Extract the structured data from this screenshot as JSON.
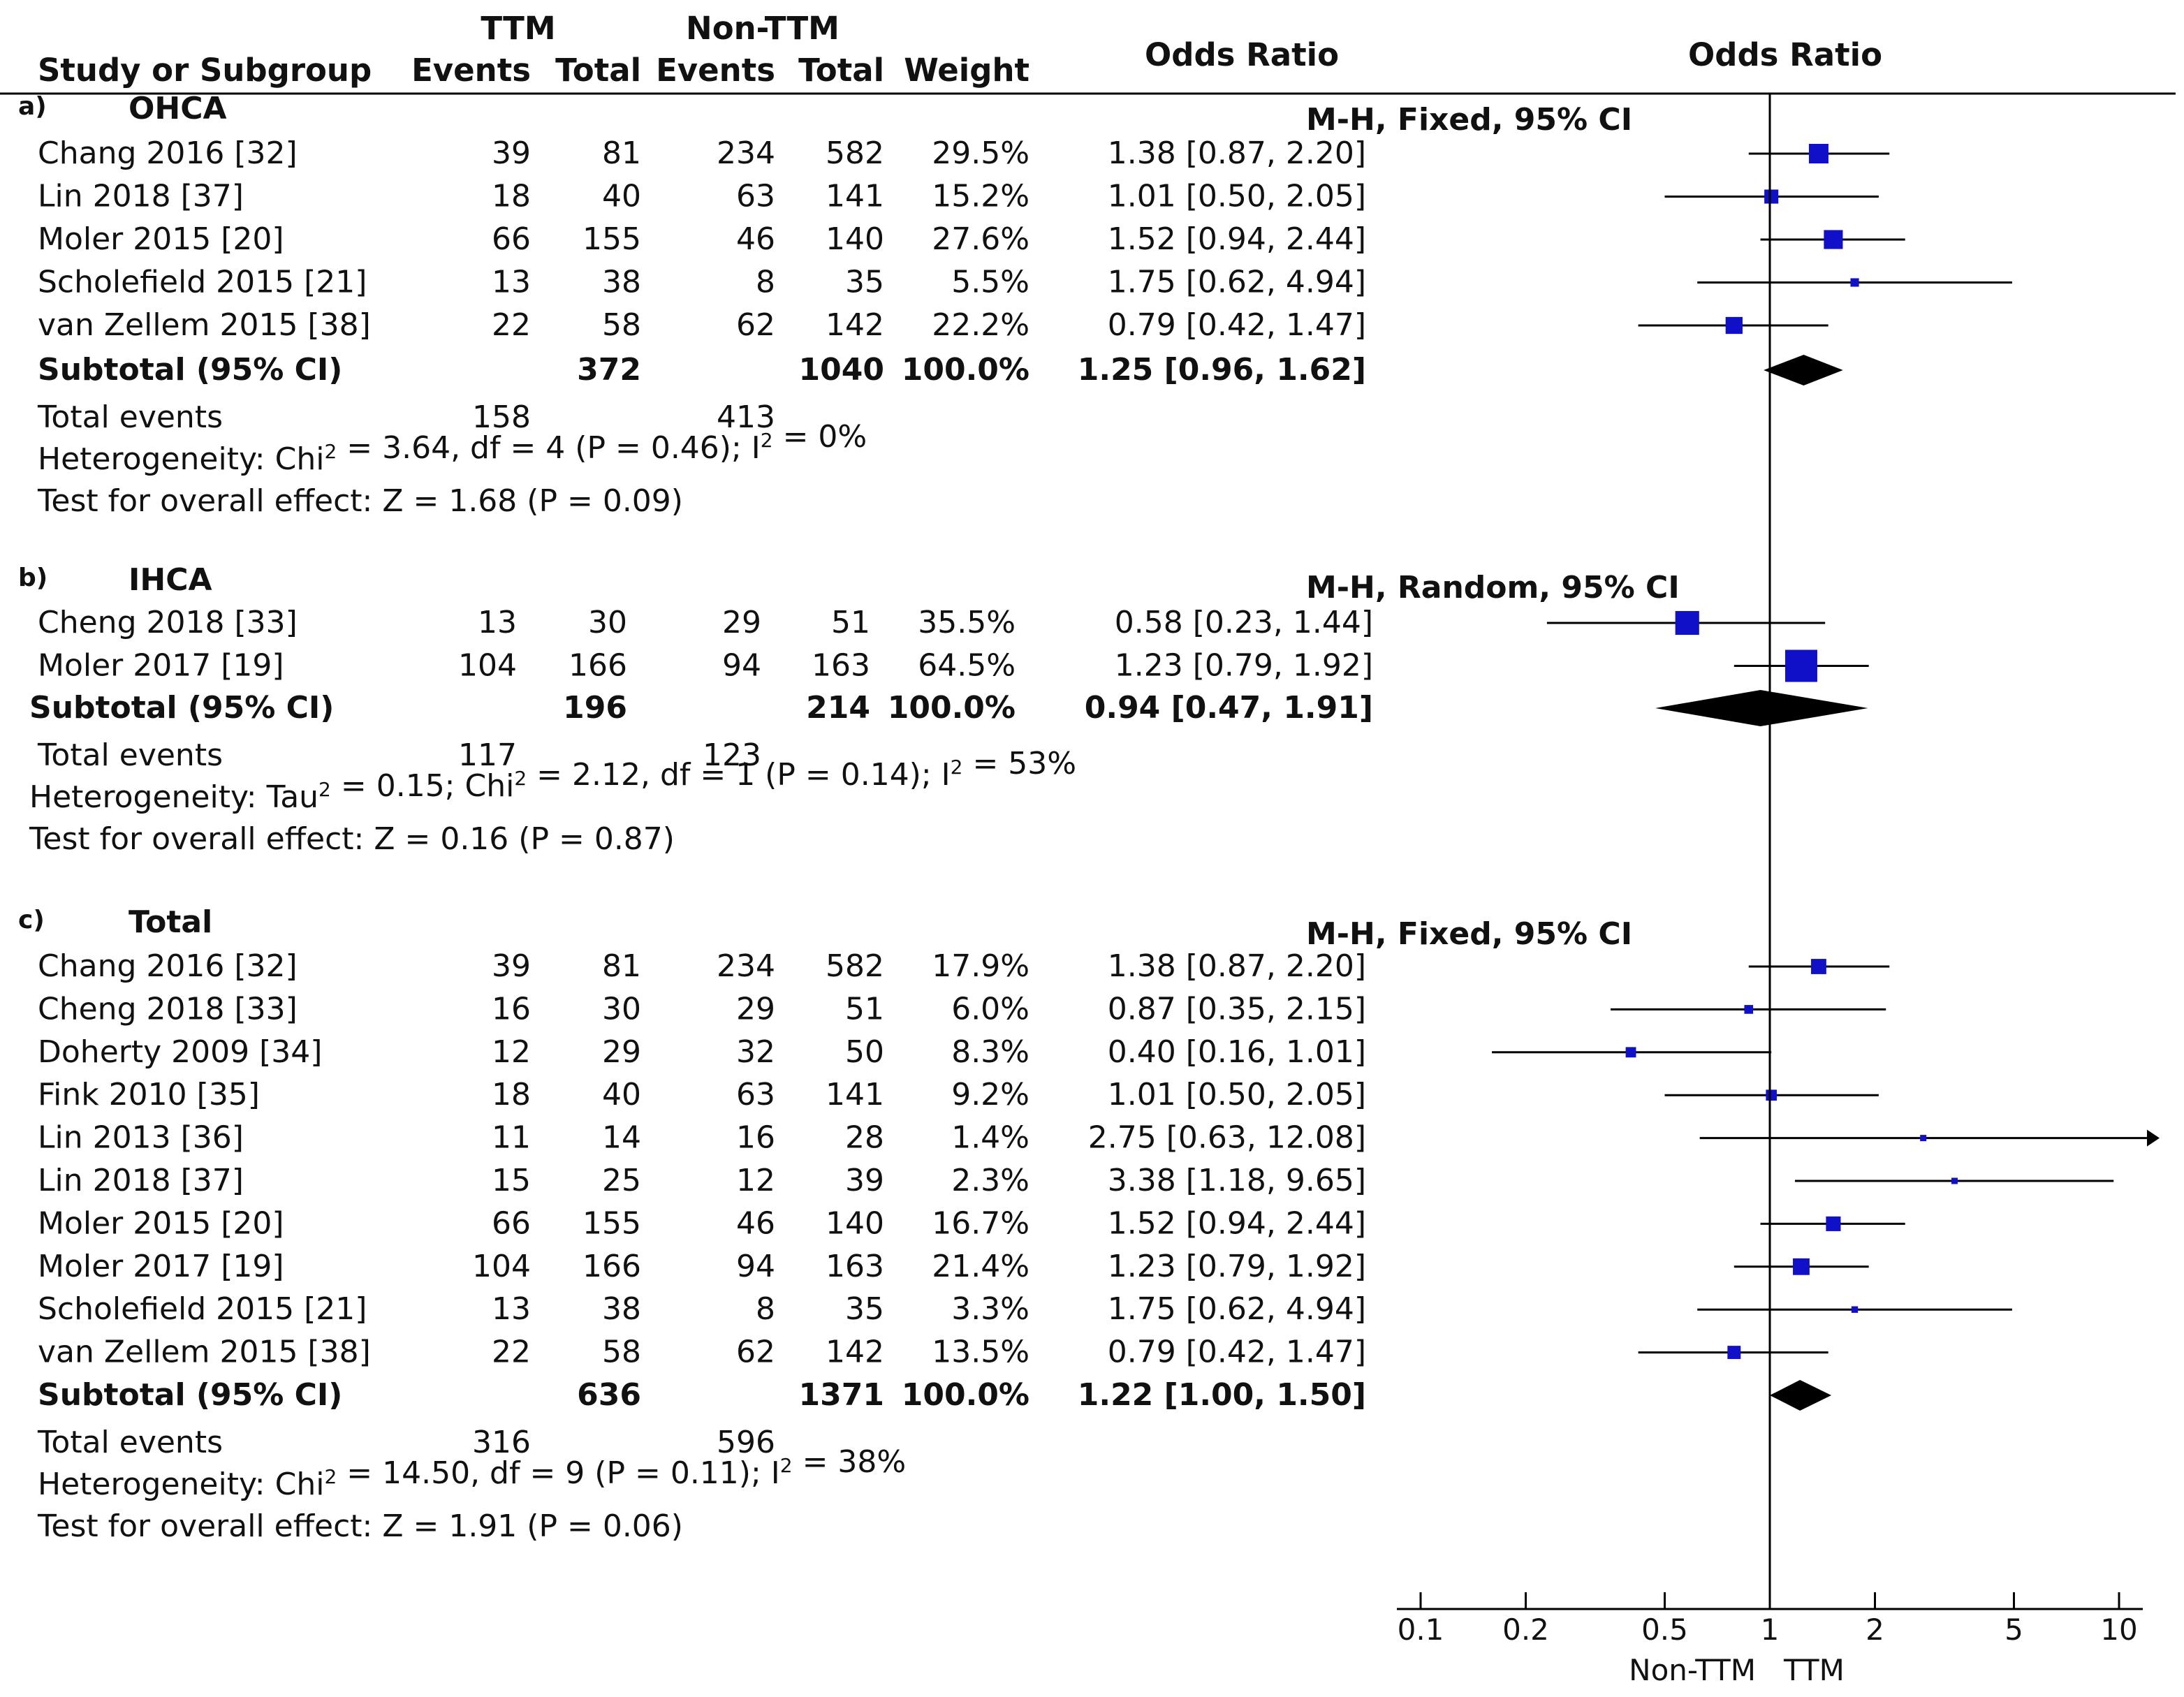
{
  "chart_data": {
    "type": "forest",
    "scale": "log",
    "xlim": [
      0.1,
      10
    ],
    "header": {
      "study": "Study or Subgroup",
      "group1": "TTM",
      "group2": "Non-TTM",
      "events": "Events",
      "total": "Total",
      "weight": "Weight",
      "or_text": "Odds Ratio",
      "or_plot": "Odds Ratio"
    },
    "axis": {
      "ticks": [
        0.1,
        0.2,
        0.5,
        1,
        2,
        5,
        10
      ],
      "tick_labels": [
        "0.1",
        "0.2",
        "0.5",
        "1",
        "2",
        "5",
        "10"
      ],
      "left_label": "Non-TTM",
      "right_label": "TTM",
      "null_value": 1
    },
    "sections": [
      {
        "letter": "a)",
        "title": "OHCA",
        "method": "M-H, Fixed, 95% CI",
        "studies": [
          {
            "name": "Chang 2016 [32]",
            "e1": "39",
            "n1": "81",
            "e2": "234",
            "n2": "582",
            "weight": "29.5%",
            "ci_text": "1.38 [0.87, 2.20]",
            "or": 1.38,
            "lo": 0.87,
            "hi": 2.2,
            "w": 29.5
          },
          {
            "name": "Lin 2018 [37]",
            "e1": "18",
            "n1": "40",
            "e2": "63",
            "n2": "141",
            "weight": "15.2%",
            "ci_text": "1.01 [0.50, 2.05]",
            "or": 1.01,
            "lo": 0.5,
            "hi": 2.05,
            "w": 15.2
          },
          {
            "name": "Moler 2015 [20]",
            "e1": "66",
            "n1": "155",
            "e2": "46",
            "n2": "140",
            "weight": "27.6%",
            "ci_text": "1.52 [0.94, 2.44]",
            "or": 1.52,
            "lo": 0.94,
            "hi": 2.44,
            "w": 27.6
          },
          {
            "name": "Scholefield 2015 [21]",
            "e1": "13",
            "n1": "38",
            "e2": "8",
            "n2": "35",
            "weight": "5.5%",
            "ci_text": "1.75 [0.62, 4.94]",
            "or": 1.75,
            "lo": 0.62,
            "hi": 4.94,
            "w": 5.5
          },
          {
            "name": "van Zellem 2015 [38]",
            "e1": "22",
            "n1": "58",
            "e2": "62",
            "n2": "142",
            "weight": "22.2%",
            "ci_text": "0.79 [0.42, 1.47]",
            "or": 0.79,
            "lo": 0.42,
            "hi": 1.47,
            "w": 22.2
          }
        ],
        "subtotal": {
          "label": "Subtotal (95% CI)",
          "n1": "372",
          "n2": "1040",
          "weight": "100.0%",
          "ci_text": "1.25 [0.96, 1.62]",
          "or": 1.25,
          "lo": 0.96,
          "hi": 1.62
        },
        "total_events": {
          "label": "Total events",
          "e1": "158",
          "e2": "413"
        },
        "heterogeneity": "Heterogeneity: Chi² = 3.64, df = 4 (P = 0.46); I² = 0%",
        "overall": "Test for overall effect: Z = 1.68 (P = 0.09)"
      },
      {
        "letter": "b)",
        "title": "IHCA",
        "method": "M-H, Random, 95% CI",
        "studies": [
          {
            "name": "Cheng 2018 [33]",
            "e1": "13",
            "n1": "30",
            "e2": "29",
            "n2": "51",
            "weight": "35.5%",
            "ci_text": "0.58 [0.23, 1.44]",
            "or": 0.58,
            "lo": 0.23,
            "hi": 1.44,
            "w": 35.5
          },
          {
            "name": "Moler 2017 [19]",
            "e1": "104",
            "n1": "166",
            "e2": "94",
            "n2": "163",
            "weight": "64.5%",
            "ci_text": "1.23 [0.79, 1.92]",
            "or": 1.23,
            "lo": 0.79,
            "hi": 1.92,
            "w": 64.5
          }
        ],
        "subtotal": {
          "label": "Subtotal (95% CI)",
          "n1": "196",
          "n2": "214",
          "weight": "100.0%",
          "ci_text": "0.94 [0.47, 1.91]",
          "or": 0.94,
          "lo": 0.47,
          "hi": 1.91
        },
        "total_events": {
          "label": "Total events",
          "e1": "117",
          "e2": "123"
        },
        "heterogeneity": "Heterogeneity: Tau² = 0.15; Chi² = 2.12, df = 1 (P = 0.14); I² = 53%",
        "overall": "Test for overall effect: Z = 0.16 (P = 0.87)"
      },
      {
        "letter": "c)",
        "title": "Total",
        "method": "M-H, Fixed, 95% CI",
        "studies": [
          {
            "name": "Chang 2016 [32]",
            "e1": "39",
            "n1": "81",
            "e2": "234",
            "n2": "582",
            "weight": "17.9%",
            "ci_text": "1.38 [0.87, 2.20]",
            "or": 1.38,
            "lo": 0.87,
            "hi": 2.2,
            "w": 17.9
          },
          {
            "name": "Cheng 2018 [33]",
            "e1": "16",
            "n1": "30",
            "e2": "29",
            "n2": "51",
            "weight": "6.0%",
            "ci_text": "0.87 [0.35, 2.15]",
            "or": 0.87,
            "lo": 0.35,
            "hi": 2.15,
            "w": 6.0
          },
          {
            "name": "Doherty 2009 [34]",
            "e1": "12",
            "n1": "29",
            "e2": "32",
            "n2": "50",
            "weight": "8.3%",
            "ci_text": "0.40 [0.16, 1.01]",
            "or": 0.4,
            "lo": 0.16,
            "hi": 1.01,
            "w": 8.3
          },
          {
            "name": "Fink 2010 [35]",
            "e1": "18",
            "n1": "40",
            "e2": "63",
            "n2": "141",
            "weight": "9.2%",
            "ci_text": "1.01 [0.50, 2.05]",
            "or": 1.01,
            "lo": 0.5,
            "hi": 2.05,
            "w": 9.2
          },
          {
            "name": "Lin 2013 [36]",
            "e1": "11",
            "n1": "14",
            "e2": "16",
            "n2": "28",
            "weight": "1.4%",
            "ci_text": "2.75 [0.63, 12.08]",
            "or": 2.75,
            "lo": 0.63,
            "hi": 12.08,
            "w": 1.4
          },
          {
            "name": "Lin 2018 [37]",
            "e1": "15",
            "n1": "25",
            "e2": "12",
            "n2": "39",
            "weight": "2.3%",
            "ci_text": "3.38 [1.18, 9.65]",
            "or": 3.38,
            "lo": 1.18,
            "hi": 9.65,
            "w": 2.3
          },
          {
            "name": "Moler 2015 [20]",
            "e1": "66",
            "n1": "155",
            "e2": "46",
            "n2": "140",
            "weight": "16.7%",
            "ci_text": "1.52 [0.94, 2.44]",
            "or": 1.52,
            "lo": 0.94,
            "hi": 2.44,
            "w": 16.7
          },
          {
            "name": "Moler 2017 [19]",
            "e1": "104",
            "n1": "166",
            "e2": "94",
            "n2": "163",
            "weight": "21.4%",
            "ci_text": "1.23 [0.79, 1.92]",
            "or": 1.23,
            "lo": 0.79,
            "hi": 1.92,
            "w": 21.4
          },
          {
            "name": "Scholefield 2015 [21]",
            "e1": "13",
            "n1": "38",
            "e2": "8",
            "n2": "35",
            "weight": "3.3%",
            "ci_text": "1.75 [0.62, 4.94]",
            "or": 1.75,
            "lo": 0.62,
            "hi": 4.94,
            "w": 3.3
          },
          {
            "name": "van Zellem 2015 [38]",
            "e1": "22",
            "n1": "58",
            "e2": "62",
            "n2": "142",
            "weight": "13.5%",
            "ci_text": "0.79 [0.42, 1.47]",
            "or": 0.79,
            "lo": 0.42,
            "hi": 1.47,
            "w": 13.5
          }
        ],
        "subtotal": {
          "label": "Subtotal (95% CI)",
          "n1": "636",
          "n2": "1371",
          "weight": "100.0%",
          "ci_text": "1.22 [1.00, 1.50]",
          "or": 1.22,
          "lo": 1.0,
          "hi": 1.5
        },
        "total_events": {
          "label": "Total events",
          "e1": "316",
          "e2": "596"
        },
        "heterogeneity": "Heterogeneity: Chi² = 14.50, df = 9 (P = 0.11); I² = 38%",
        "overall": "Test for overall effect: Z = 1.91 (P = 0.06)"
      }
    ]
  },
  "colors": {
    "marker": "#1010c8",
    "diamond": "#000000",
    "text": "#111111",
    "line": "#000000"
  }
}
